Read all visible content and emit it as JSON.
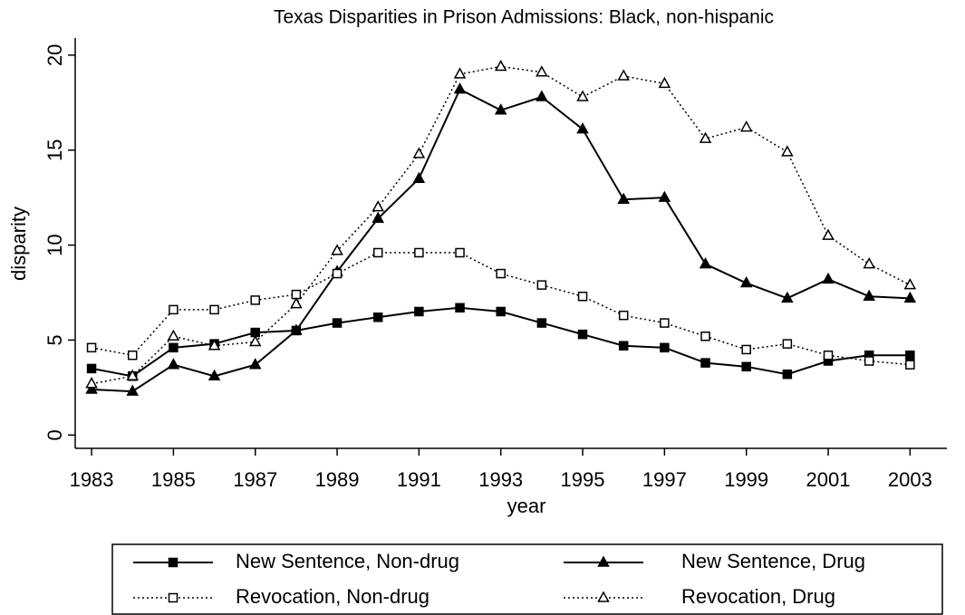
{
  "chart_data": {
    "type": "line",
    "title": "Texas Disparities in Prison Admissions: Black, non-hispanic",
    "x_label": "year",
    "y_label": "disparity",
    "x": [
      1983,
      1984,
      1985,
      1986,
      1987,
      1988,
      1989,
      1990,
      1991,
      1992,
      1993,
      1994,
      1995,
      1996,
      1997,
      1998,
      1999,
      2000,
      2001,
      2002,
      2003
    ],
    "xlim": [
      1982.6,
      2003.9
    ],
    "xticks": [
      1983,
      1985,
      1987,
      1989,
      1991,
      1993,
      1995,
      1997,
      1999,
      2001,
      2003
    ],
    "ylim": [
      -0.7,
      20.9
    ],
    "yticks": [
      0,
      5,
      10,
      15,
      20
    ],
    "series": [
      {
        "name": "New Sentence, Non-drug",
        "color": "#000000",
        "line_style": "solid",
        "marker": "square",
        "filled": true,
        "values": [
          3.5,
          3.1,
          4.6,
          4.8,
          5.4,
          5.5,
          5.9,
          6.2,
          6.5,
          6.7,
          6.5,
          5.9,
          5.3,
          4.7,
          4.6,
          3.8,
          3.6,
          3.2,
          3.9,
          4.2,
          4.2
        ]
      },
      {
        "name": "New Sentence, Drug",
        "color": "#000000",
        "line_style": "solid",
        "marker": "triangle",
        "filled": true,
        "values": [
          2.4,
          2.3,
          3.7,
          3.1,
          3.7,
          5.5,
          8.6,
          11.4,
          13.5,
          18.2,
          17.1,
          17.8,
          16.1,
          12.4,
          12.5,
          9.0,
          8.0,
          7.2,
          8.2,
          7.3,
          7.2
        ]
      },
      {
        "name": "Revocation, Non-drug",
        "color": "#000000",
        "line_style": "dotted",
        "marker": "square",
        "filled": false,
        "values": [
          4.6,
          4.2,
          6.6,
          6.6,
          7.1,
          7.4,
          8.5,
          9.6,
          9.6,
          9.6,
          8.5,
          7.9,
          7.3,
          6.3,
          5.9,
          5.2,
          4.5,
          4.8,
          4.2,
          3.9,
          3.7
        ]
      },
      {
        "name": "Revocation, Drug",
        "color": "#000000",
        "line_style": "dotted",
        "marker": "triangle",
        "filled": false,
        "values": [
          2.7,
          3.1,
          5.2,
          4.7,
          4.9,
          6.9,
          9.7,
          12.0,
          14.8,
          19.0,
          19.4,
          19.1,
          17.8,
          18.9,
          18.5,
          15.6,
          16.2,
          14.9,
          10.5,
          9.0,
          7.9
        ]
      }
    ]
  }
}
